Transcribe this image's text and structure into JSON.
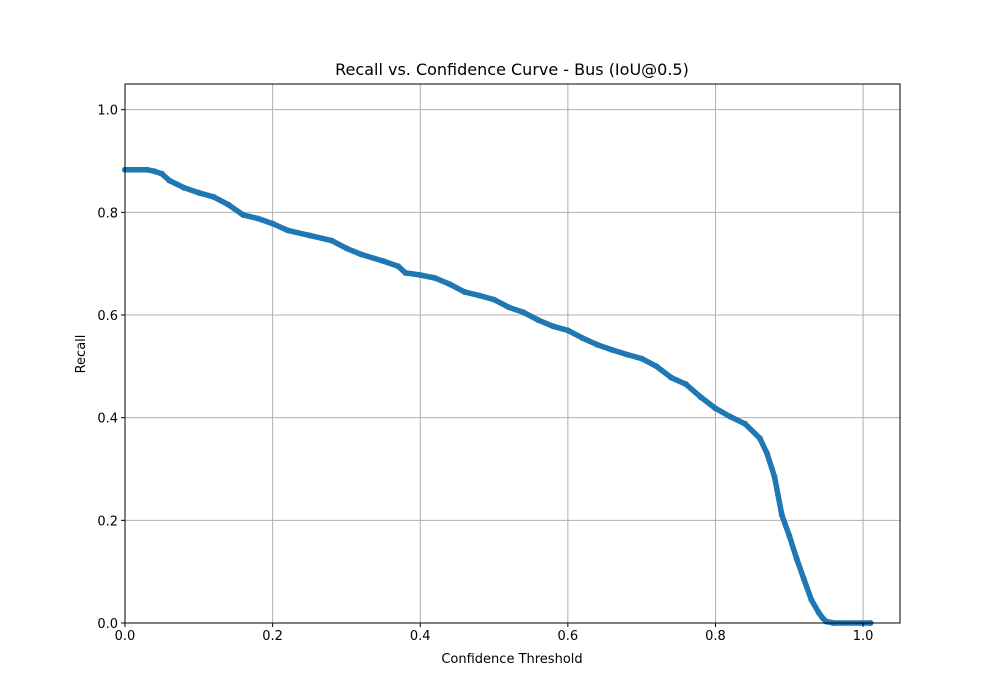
{
  "chart_data": {
    "type": "line",
    "title": "Recall vs. Confidence Curve - Bus (IoU@0.5)",
    "xlabel": "Confidence Threshold",
    "ylabel": "Recall",
    "xlim": [
      0.0,
      1.05
    ],
    "ylim": [
      0.0,
      1.05
    ],
    "xticks": [
      0.0,
      0.2,
      0.4,
      0.6,
      0.8,
      1.0
    ],
    "yticks": [
      0.0,
      0.2,
      0.4,
      0.6,
      0.8,
      1.0
    ],
    "xtick_labels": [
      "0.0",
      "0.2",
      "0.4",
      "0.6",
      "0.8",
      "1.0"
    ],
    "ytick_labels": [
      "0.0",
      "0.2",
      "0.4",
      "0.6",
      "0.8",
      "1.0"
    ],
    "grid": true,
    "colors": {
      "series": "#1f77b4"
    },
    "series": [
      {
        "x": [
          0.0,
          0.03,
          0.04,
          0.05,
          0.06,
          0.08,
          0.1,
          0.12,
          0.14,
          0.16,
          0.18,
          0.2,
          0.22,
          0.25,
          0.28,
          0.3,
          0.32,
          0.35,
          0.37,
          0.38,
          0.4,
          0.42,
          0.44,
          0.46,
          0.48,
          0.5,
          0.52,
          0.54,
          0.56,
          0.58,
          0.6,
          0.62,
          0.64,
          0.66,
          0.68,
          0.7,
          0.72,
          0.74,
          0.76,
          0.78,
          0.8,
          0.82,
          0.84,
          0.86,
          0.87,
          0.88,
          0.89,
          0.9,
          0.91,
          0.92,
          0.93,
          0.94,
          0.945,
          0.95,
          0.96,
          1.01
        ],
        "y": [
          0.883,
          0.883,
          0.88,
          0.875,
          0.862,
          0.848,
          0.838,
          0.83,
          0.815,
          0.795,
          0.788,
          0.778,
          0.765,
          0.755,
          0.745,
          0.73,
          0.718,
          0.705,
          0.695,
          0.682,
          0.678,
          0.672,
          0.66,
          0.645,
          0.638,
          0.63,
          0.615,
          0.605,
          0.59,
          0.578,
          0.57,
          0.555,
          0.542,
          0.532,
          0.523,
          0.515,
          0.5,
          0.478,
          0.465,
          0.44,
          0.418,
          0.402,
          0.388,
          0.36,
          0.33,
          0.285,
          0.21,
          0.17,
          0.125,
          0.085,
          0.045,
          0.02,
          0.01,
          0.003,
          0.0,
          0.0
        ]
      }
    ]
  }
}
